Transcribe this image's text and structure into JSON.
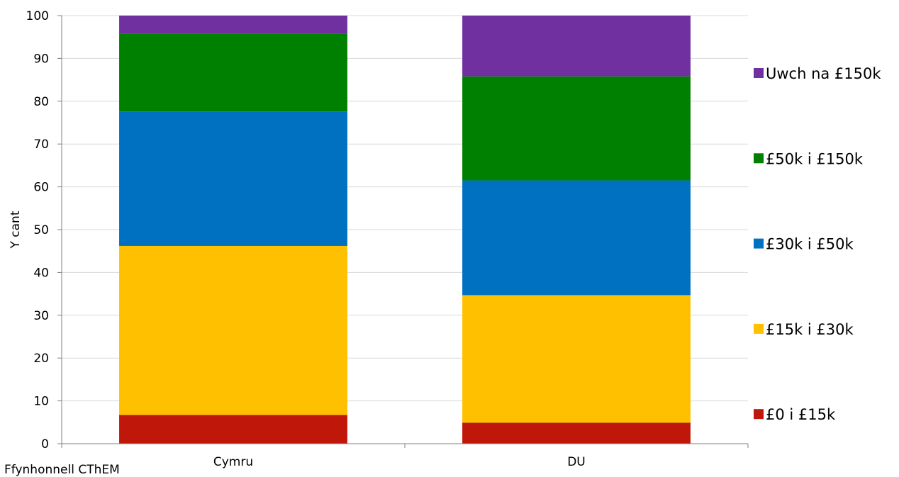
{
  "chart_data": {
    "type": "bar",
    "stacked": true,
    "categories": [
      "Cymru",
      "DU"
    ],
    "series": [
      {
        "name": "£0 i £15k",
        "color": "#C0170B",
        "values": [
          6.7,
          4.9
        ]
      },
      {
        "name": "£15k i £30k",
        "color": "#FFC000",
        "values": [
          39.5,
          29.8
        ]
      },
      {
        "name": "£30k i £50k",
        "color": "#0070C0",
        "values": [
          31.4,
          26.8
        ]
      },
      {
        "name": "£50k i £150k",
        "color": "#008000",
        "values": [
          18.2,
          24.3
        ]
      },
      {
        "name": "Uwch na £150k",
        "color": "#7030A0",
        "values": [
          4.2,
          14.2
        ]
      }
    ],
    "ylabel": "Y cant",
    "xlabel": "",
    "ylim": [
      0,
      100
    ],
    "yticks": [
      0,
      10,
      20,
      30,
      40,
      50,
      60,
      70,
      80,
      90,
      100
    ],
    "grid": true,
    "legend": {
      "position": "right",
      "order": "reverse"
    }
  },
  "source_note": "Ffynhonnell CThEM"
}
